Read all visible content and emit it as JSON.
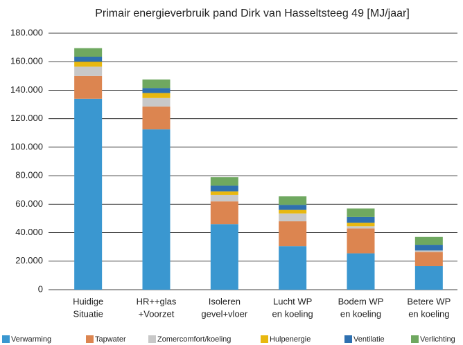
{
  "chart_data": {
    "type": "stacked-bar",
    "title": "Primair energieverbruik pand Dirk van Hasseltsteeg 49 [MJ/jaar]",
    "categories": [
      [
        "Huidige",
        "Situatie"
      ],
      [
        "HR++glas",
        "+Voorzet"
      ],
      [
        "Isoleren",
        "gevel+vloer"
      ],
      [
        "Lucht WP",
        "en koeling"
      ],
      [
        "Bodem WP",
        "en koeling"
      ],
      [
        "Betere WP",
        "en koeling"
      ]
    ],
    "series": [
      {
        "name": "Verwarming",
        "color": "#3a97d0",
        "values": [
          134000,
          112500,
          46000,
          30500,
          25500,
          16500
        ]
      },
      {
        "name": "Tapwater",
        "color": "#dc8550",
        "values": [
          16000,
          16000,
          16000,
          17500,
          17500,
          10000
        ]
      },
      {
        "name": "Zomercomfort/koeling",
        "color": "#c8c8c8",
        "values": [
          6500,
          6000,
          4500,
          5500,
          1500,
          1000
        ]
      },
      {
        "name": "Hulpenergie",
        "color": "#e8b810",
        "values": [
          3500,
          3500,
          2500,
          2500,
          2500,
          0
        ]
      },
      {
        "name": "Ventilatie",
        "color": "#2e70b0",
        "values": [
          3500,
          3500,
          4000,
          3500,
          4000,
          4000
        ]
      },
      {
        "name": "Verlichting",
        "color": "#6fa860",
        "values": [
          6000,
          6000,
          6000,
          6000,
          6000,
          5500
        ]
      }
    ],
    "ylim": [
      0,
      180000
    ],
    "yticks": [
      0,
      {
        "value": 20000,
        "label": "20.000"
      },
      {
        "value": 40000,
        "label": "40.000"
      },
      {
        "value": 60000,
        "label": "60.000"
      },
      {
        "value": 80000,
        "label": "80.000"
      },
      {
        "value": 100000,
        "label": "100.000"
      },
      {
        "value": 120000,
        "label": "120.000"
      },
      {
        "value": 140000,
        "label": "140.000"
      },
      {
        "value": 160000,
        "label": "160.000"
      },
      {
        "value": 180000,
        "label": "180.000"
      }
    ],
    "grid": true,
    "legend": "bottom"
  }
}
